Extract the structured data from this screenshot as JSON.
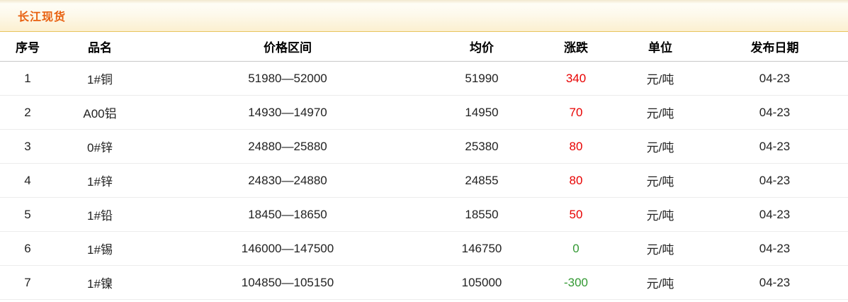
{
  "panel": {
    "title": "长江现货"
  },
  "table": {
    "headers": [
      "序号",
      "品名",
      "价格区间",
      "均价",
      "涨跌",
      "单位",
      "发布日期"
    ],
    "rows": [
      {
        "no": "1",
        "name": "1#铜",
        "range": "51980—52000",
        "avg": "51990",
        "change": "340",
        "trend": "up",
        "unit": "元/吨",
        "date": "04-23"
      },
      {
        "no": "2",
        "name": "A00铝",
        "range": "14930—14970",
        "avg": "14950",
        "change": "70",
        "trend": "up",
        "unit": "元/吨",
        "date": "04-23"
      },
      {
        "no": "3",
        "name": "0#锌",
        "range": "24880—25880",
        "avg": "25380",
        "change": "80",
        "trend": "up",
        "unit": "元/吨",
        "date": "04-23"
      },
      {
        "no": "4",
        "name": "1#锌",
        "range": "24830—24880",
        "avg": "24855",
        "change": "80",
        "trend": "up",
        "unit": "元/吨",
        "date": "04-23"
      },
      {
        "no": "5",
        "name": "1#铅",
        "range": "18450—18650",
        "avg": "18550",
        "change": "50",
        "trend": "up",
        "unit": "元/吨",
        "date": "04-23"
      },
      {
        "no": "6",
        "name": "1#锡",
        "range": "146000—147500",
        "avg": "146750",
        "change": "0",
        "trend": "flat",
        "unit": "元/吨",
        "date": "04-23"
      },
      {
        "no": "7",
        "name": "1#镍",
        "range": "104850—105150",
        "avg": "105000",
        "change": "-300",
        "trend": "down",
        "unit": "元/吨",
        "date": "04-23"
      }
    ]
  },
  "colors": {
    "title_orange": "#e8600f",
    "change_up_red": "#e80000",
    "change_down_green": "#339933",
    "title_bar_border_gold": "#e7c45e"
  }
}
